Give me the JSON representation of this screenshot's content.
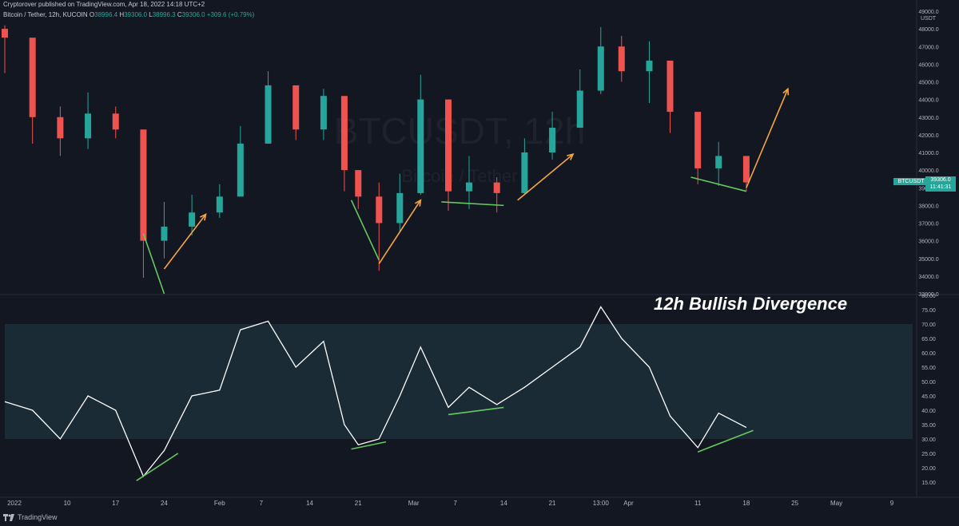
{
  "header": {
    "published": "Cryptorover published on TradingView.com, Apr 18, 2022 14:18 UTC+2"
  },
  "legend": {
    "symbol": "Bitcoin / Tether, 12h, KUCOIN",
    "o_key": "O",
    "o_val": "38996.4",
    "h_key": "H",
    "h_val": "39306.0",
    "l_key": "L",
    "l_val": "38996.3",
    "c_key": "C",
    "c_val": "39306.0",
    "change": "+309.6 (+0.79%)"
  },
  "watermark": {
    "symbol": "BTCUSDT, 12h",
    "name": "Bitcoin / Tether"
  },
  "annotation": "12h Bullish Divergence",
  "branding": "TradingView",
  "price_axis": {
    "currency": "USDT",
    "labels": [
      "49000.0",
      "48000.0",
      "47000.0",
      "46000.0",
      "45000.0",
      "44000.0",
      "43000.0",
      "42000.0",
      "41000.0",
      "40000.0",
      "39000.0",
      "38000.0",
      "37000.0",
      "36000.0",
      "35000.0",
      "34000.0",
      "33000.0"
    ],
    "last_label": "BTCUSDT",
    "last_price": "39306.0",
    "countdown": "11:41:31"
  },
  "rsi_axis": {
    "labels": [
      "80.00",
      "75.00",
      "70.00",
      "65.00",
      "60.00",
      "55.00",
      "50.00",
      "45.00",
      "40.00",
      "35.00",
      "30.00",
      "25.00",
      "20.00",
      "15.00"
    ]
  },
  "time_axis": {
    "labels": [
      "2022",
      "10",
      "17",
      "24",
      "Feb",
      "7",
      "14",
      "21",
      "Mar",
      "7",
      "14",
      "21",
      "13:00",
      "Apr",
      "11",
      "18",
      "25",
      "May",
      "9"
    ]
  },
  "colors": {
    "background": "#131722",
    "up": "#26a69a",
    "down": "#ef5350",
    "rsi_band": "#1c2f3a",
    "rsi_line": "#ffffff",
    "trend_green": "#66c95e",
    "arrow_orange": "#f7a541"
  },
  "chart_data": [
    {
      "type": "candlestick",
      "ylim": [
        33000,
        49000
      ],
      "x": [
        "2022-01-01",
        "2022-01-05",
        "2022-01-09",
        "2022-01-13",
        "2022-01-17",
        "2022-01-21",
        "2022-01-24",
        "2022-01-28",
        "2022-02-01",
        "2022-02-04",
        "2022-02-08",
        "2022-02-12",
        "2022-02-16",
        "2022-02-19",
        "2022-02-21",
        "2022-02-24",
        "2022-02-27",
        "2022-03-02",
        "2022-03-06",
        "2022-03-09",
        "2022-03-13",
        "2022-03-17",
        "2022-03-21",
        "2022-03-25",
        "2022-03-28",
        "2022-03-31",
        "2022-04-04",
        "2022-04-07",
        "2022-04-11",
        "2022-04-14",
        "2022-04-18"
      ],
      "close": [
        47500,
        43000,
        41800,
        43200,
        42300,
        36000,
        36800,
        37600,
        38500,
        41500,
        44800,
        42300,
        44200,
        40000,
        38500,
        37000,
        38700,
        44000,
        38800,
        39300,
        38700,
        41000,
        42400,
        44500,
        47000,
        45600,
        46200,
        43300,
        40100,
        40800,
        39306
      ],
      "high": [
        48200,
        47300,
        43600,
        44400,
        43600,
        39500,
        38200,
        38600,
        39200,
        42500,
        45600,
        44200,
        44600,
        42300,
        39500,
        39300,
        39800,
        45400,
        42400,
        40800,
        39600,
        41800,
        43300,
        45700,
        48100,
        47600,
        47300,
        45200,
        41600,
        41600,
        40500
      ],
      "low": [
        45500,
        41500,
        40800,
        41200,
        41800,
        33900,
        35000,
        36300,
        37300,
        38700,
        41600,
        41700,
        41700,
        38800,
        37800,
        34300,
        36500,
        38600,
        37700,
        37800,
        37600,
        38600,
        40600,
        42400,
        44300,
        45000,
        43800,
        42100,
        39200,
        39100,
        38800
      ]
    },
    {
      "type": "line",
      "name": "",
      "ylim": [
        10,
        80
      ],
      "band": [
        30,
        70
      ],
      "x": [
        "2022-01-01",
        "2022-01-05",
        "2022-01-09",
        "2022-01-13",
        "2022-01-17",
        "2022-01-21",
        "2022-01-24",
        "2022-01-28",
        "2022-02-01",
        "2022-02-04",
        "2022-02-08",
        "2022-02-12",
        "2022-02-16",
        "2022-02-19",
        "2022-02-21",
        "2022-02-24",
        "2022-02-27",
        "2022-03-02",
        "2022-03-06",
        "2022-03-09",
        "2022-03-13",
        "2022-03-17",
        "2022-03-21",
        "2022-03-25",
        "2022-03-28",
        "2022-03-31",
        "2022-04-04",
        "2022-04-07",
        "2022-04-11",
        "2022-04-14",
        "2022-04-18"
      ],
      "values": [
        43,
        40,
        30,
        45,
        40,
        17,
        26,
        45,
        47,
        68,
        71,
        55,
        64,
        35,
        28,
        30,
        45,
        62,
        41,
        48,
        42,
        48,
        55,
        62,
        76,
        65,
        55,
        38,
        27,
        39,
        34
      ]
    }
  ],
  "drawings": {
    "price_trendlines": [
      {
        "from": [
          "2022-01-21",
          36400
        ],
        "to": [
          "2022-01-24",
          33000
        ]
      },
      {
        "from": [
          "2022-02-20",
          38300
        ],
        "to": [
          "2022-02-24",
          34900
        ]
      },
      {
        "from": [
          "2022-03-05",
          38200
        ],
        "to": [
          "2022-03-14",
          38000
        ]
      },
      {
        "from": [
          "2022-04-10",
          39600
        ],
        "to": [
          "2022-04-18",
          38800
        ]
      }
    ],
    "rsi_trendlines": [
      {
        "from": [
          "2022-01-20",
          15.5
        ],
        "to": [
          "2022-01-26",
          25
        ]
      },
      {
        "from": [
          "2022-02-20",
          26.5
        ],
        "to": [
          "2022-02-25",
          29
        ]
      },
      {
        "from": [
          "2022-03-06",
          38.5
        ],
        "to": [
          "2022-03-14",
          41
        ]
      },
      {
        "from": [
          "2022-04-11",
          25.5
        ],
        "to": [
          "2022-04-19",
          33
        ]
      }
    ],
    "arrows": [
      {
        "from": [
          "2022-01-24",
          34400
        ],
        "to": [
          "2022-01-30",
          37500
        ]
      },
      {
        "from": [
          "2022-02-24",
          34700
        ],
        "to": [
          "2022-03-02",
          38300
        ]
      },
      {
        "from": [
          "2022-03-16",
          38300
        ],
        "to": [
          "2022-03-24",
          40900
        ]
      },
      {
        "from": [
          "2022-04-18",
          39000
        ],
        "to": [
          "2022-04-24",
          44600
        ]
      }
    ]
  }
}
